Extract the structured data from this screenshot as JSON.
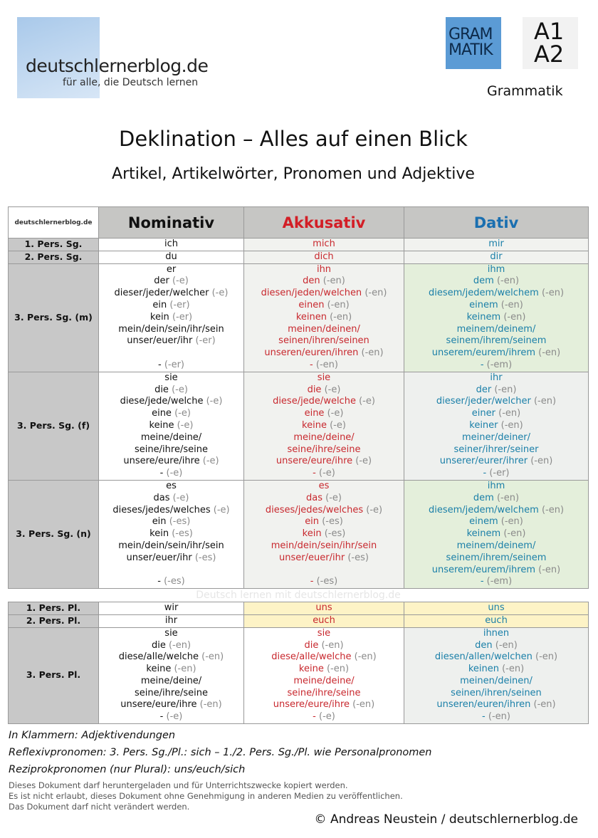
{
  "header": {
    "logo_name": "deutschlernerblog.de",
    "logo_tagline": "für alle, die Deutsch lernen",
    "badge_grammar": "GRAM MATIK",
    "badge_level_1": "A1",
    "badge_level_2": "A2",
    "category": "Grammatik"
  },
  "title": "Deklination – Alles auf einen Blick",
  "subtitle": "Artikel, Artikelwörter, Pronomen und Adjektive",
  "table": {
    "logo": "deutschlernerblog.de",
    "columns": [
      "Nominativ",
      "Akkusativ",
      "Dativ"
    ],
    "colors": {
      "nominativ": "#111111",
      "akkusativ": "#d31e26",
      "dativ": "#1a6fb0"
    },
    "watermark": "Deutsch lernen mit deutschlernerblog.de",
    "rows": [
      {
        "label": "1. Pers. Sg.",
        "bg": [
          "bgW",
          "bgA",
          "bgA"
        ],
        "cells": [
          [
            [
              "ich",
              ""
            ]
          ],
          [
            [
              "mich",
              ""
            ]
          ],
          [
            [
              "mir",
              ""
            ]
          ]
        ]
      },
      {
        "label": "2. Pers. Sg.",
        "bg": [
          "bgW",
          "bgA",
          "bgA"
        ],
        "cells": [
          [
            [
              "du",
              ""
            ]
          ],
          [
            [
              "dich",
              ""
            ]
          ],
          [
            [
              "dir",
              ""
            ]
          ]
        ]
      },
      {
        "label": "3. Pers. Sg. (m)",
        "bg": [
          "bgW",
          "bgA",
          "bgG"
        ],
        "cells": [
          [
            [
              "er",
              ""
            ],
            [
              "der",
              "(-e)"
            ],
            [
              "dieser/jeder/welcher",
              "(-e)"
            ],
            [
              "ein",
              "(-er)"
            ],
            [
              "kein",
              "(-er)"
            ],
            [
              "mein/dein/sein/ihr/sein",
              ""
            ],
            [
              "unser/euer/ihr",
              "(-er)"
            ],
            [
              "",
              ""
            ],
            [
              "-",
              "(-er)"
            ]
          ],
          [
            [
              "ihn",
              ""
            ],
            [
              "den",
              "(-en)"
            ],
            [
              "diesen/jeden/welchen",
              "(-en)"
            ],
            [
              "einen",
              "(-en)"
            ],
            [
              "keinen",
              "(-en)"
            ],
            [
              "meinen/deinen/",
              ""
            ],
            [
              "seinen/ihren/seinen",
              ""
            ],
            [
              "unseren/euren/ihren",
              "(-en)"
            ],
            [
              "-",
              "(-en)"
            ]
          ],
          [
            [
              "ihm",
              ""
            ],
            [
              "dem",
              "(-en)"
            ],
            [
              "diesem/jedem/welchem",
              "(-en)"
            ],
            [
              "einem",
              "(-en)"
            ],
            [
              "keinem",
              "(-en)"
            ],
            [
              "meinem/deinem/",
              ""
            ],
            [
              "seinem/ihrem/seinem",
              ""
            ],
            [
              "unserem/eurem/ihrem",
              "(-en)"
            ],
            [
              "-",
              "(-em)"
            ]
          ]
        ]
      },
      {
        "label": "3. Pers. Sg. (f)",
        "bg": [
          "bgW",
          "bgA",
          "bgGr"
        ],
        "cells": [
          [
            [
              "sie",
              ""
            ],
            [
              "die",
              "(-e)"
            ],
            [
              "diese/jede/welche",
              "(-e)"
            ],
            [
              "eine",
              "(-e)"
            ],
            [
              "keine",
              "(-e)"
            ],
            [
              "meine/deine/",
              ""
            ],
            [
              "seine/ihre/seine",
              ""
            ],
            [
              "unsere/eure/ihre",
              "(-e)"
            ],
            [
              "-",
              "(-e)"
            ]
          ],
          [
            [
              "sie",
              ""
            ],
            [
              "die",
              "(-e)"
            ],
            [
              "diese/jede/welche",
              "(-e)"
            ],
            [
              "eine",
              "(-e)"
            ],
            [
              "keine",
              "(-e)"
            ],
            [
              "meine/deine/",
              ""
            ],
            [
              "seine/ihre/seine",
              ""
            ],
            [
              "unsere/eure/ihre",
              "(-e)"
            ],
            [
              "-",
              "(-e)"
            ]
          ],
          [
            [
              "ihr",
              ""
            ],
            [
              "der",
              "(-en)"
            ],
            [
              "dieser/jeder/welcher",
              "(-en)"
            ],
            [
              "einer",
              "(-en)"
            ],
            [
              "keiner",
              "(-en)"
            ],
            [
              "meiner/deiner/",
              ""
            ],
            [
              "seiner/ihrer/seiner",
              ""
            ],
            [
              "unserer/eurer/ihrer",
              "(-en)"
            ],
            [
              "-",
              "(-er)"
            ]
          ]
        ]
      },
      {
        "label": "3. Pers. Sg. (n)",
        "bg": [
          "bgW",
          "bgA",
          "bgG"
        ],
        "cells": [
          [
            [
              "es",
              ""
            ],
            [
              "das",
              "(-e)"
            ],
            [
              "dieses/jedes/welches",
              "(-e)"
            ],
            [
              "ein",
              "(-es)"
            ],
            [
              "kein",
              "(-es)"
            ],
            [
              "mein/dein/sein/ihr/sein",
              ""
            ],
            [
              "unser/euer/ihr",
              "(-es)"
            ],
            [
              "",
              ""
            ],
            [
              "-",
              "(-es)"
            ]
          ],
          [
            [
              "es",
              ""
            ],
            [
              "das",
              "(-e)"
            ],
            [
              "dieses/jedes/welches",
              "(-e)"
            ],
            [
              "ein",
              "(-es)"
            ],
            [
              "kein",
              "(-es)"
            ],
            [
              "mein/dein/sein/ihr/sein",
              ""
            ],
            [
              "unser/euer/ihr",
              "(-es)"
            ],
            [
              "",
              ""
            ],
            [
              "-",
              "(-es)"
            ]
          ],
          [
            [
              "ihm",
              ""
            ],
            [
              "dem",
              "(-en)"
            ],
            [
              "diesem/jedem/welchem",
              "(-en)"
            ],
            [
              "einem",
              "(-en)"
            ],
            [
              "keinem",
              "(-en)"
            ],
            [
              "meinem/deinem/",
              ""
            ],
            [
              "seinem/ihrem/seinem",
              ""
            ],
            [
              "unserem/eurem/ihrem",
              "(-en)"
            ],
            [
              "-",
              "(-em)"
            ]
          ]
        ]
      },
      {
        "spacer": true
      },
      {
        "label": "1. Pers. Pl.",
        "bg": [
          "bgW",
          "bgY",
          "bgY"
        ],
        "cells": [
          [
            [
              "wir",
              ""
            ]
          ],
          [
            [
              "uns",
              ""
            ]
          ],
          [
            [
              "uns",
              ""
            ]
          ]
        ]
      },
      {
        "label": "2. Pers. Pl.",
        "bg": [
          "bgW",
          "bgY",
          "bgY"
        ],
        "cells": [
          [
            [
              "ihr",
              ""
            ]
          ],
          [
            [
              "euch",
              ""
            ]
          ],
          [
            [
              "euch",
              ""
            ]
          ]
        ]
      },
      {
        "label": "3. Pers. Pl.",
        "bg": [
          "bgW",
          "bgW",
          "bgGr"
        ],
        "cells": [
          [
            [
              "sie",
              ""
            ],
            [
              "die",
              "(-en)"
            ],
            [
              "diese/alle/welche",
              "(-en)"
            ],
            [
              "keine",
              "(-en)"
            ],
            [
              "meine/deine/",
              ""
            ],
            [
              "seine/ihre/seine",
              ""
            ],
            [
              "unsere/eure/ihre",
              "(-en)"
            ],
            [
              "-",
              "(-e)"
            ]
          ],
          [
            [
              "sie",
              ""
            ],
            [
              "die",
              "(-en)"
            ],
            [
              "diese/alle/welche",
              "(-en)"
            ],
            [
              "keine",
              "(-en)"
            ],
            [
              "meine/deine/",
              ""
            ],
            [
              "seine/ihre/seine",
              ""
            ],
            [
              "unsere/eure/ihre",
              "(-en)"
            ],
            [
              "-",
              "(-e)"
            ]
          ],
          [
            [
              "ihnen",
              ""
            ],
            [
              "den",
              "(-en)"
            ],
            [
              "diesen/allen/welchen",
              "(-en)"
            ],
            [
              "keinen",
              "(-en)"
            ],
            [
              "meinen/deinen/",
              ""
            ],
            [
              "seinen/ihren/seinen",
              ""
            ],
            [
              "unseren/euren/ihren",
              "(-en)"
            ],
            [
              "-",
              "(-en)"
            ]
          ]
        ]
      }
    ]
  },
  "notes": [
    "In Klammern: Adjektivendungen",
    "Reflexivpronomen: 3. Pers. Sg./Pl.: sich – 1./2. Pers. Sg./Pl. wie Personalpronomen",
    "Reziprokpronomen (nur Plural): uns/euch/sich"
  ],
  "legal": [
    "Dieses Dokument darf heruntergeladen und für Unterrichtszwecke kopiert werden.",
    "Es ist nicht erlaubt, dieses Dokument ohne Genehmigung in anderen Medien zu veröffentlichen.",
    "Das Dokument darf nicht verändert werden."
  ],
  "copyright": "© Andreas Neustein / deutschlernerblog.de"
}
